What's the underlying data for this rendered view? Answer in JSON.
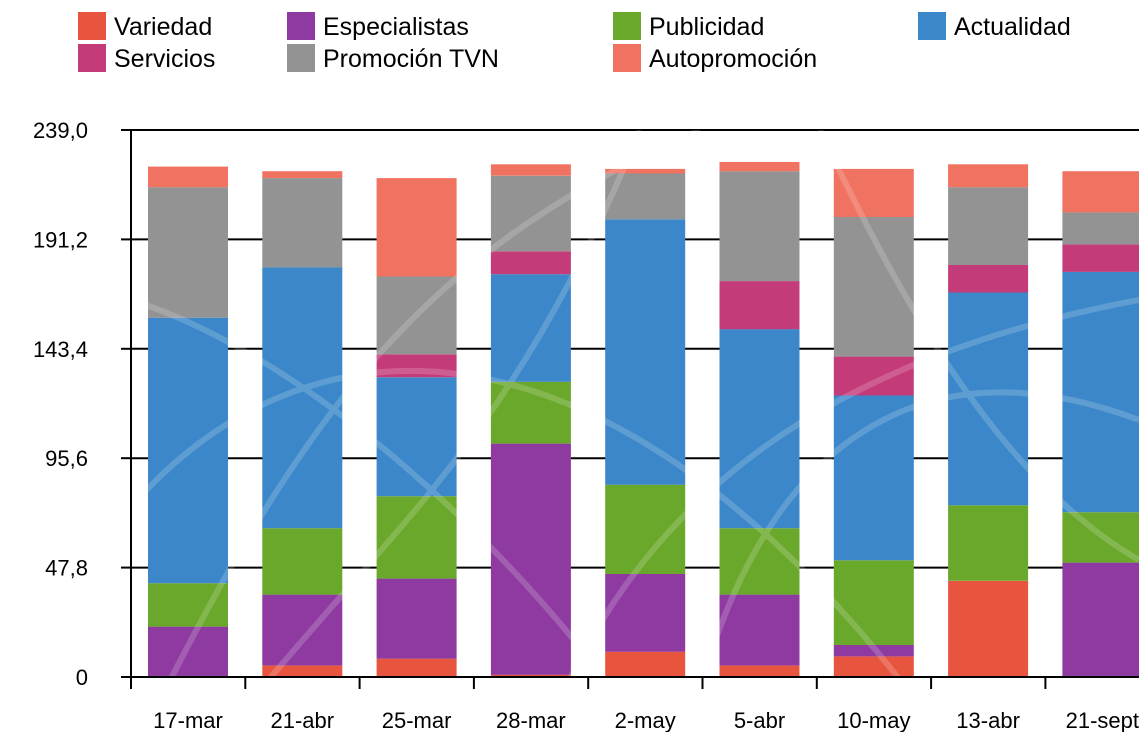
{
  "chart_data": {
    "type": "bar",
    "stacked": true,
    "title": "",
    "xlabel": "",
    "ylabel": "",
    "ylim": [
      0,
      239.0
    ],
    "y_ticks": [
      "0",
      "47,8",
      "95,6",
      "143,4",
      "191,2",
      "239,0"
    ],
    "y_tick_values": [
      0,
      47.8,
      95.6,
      143.4,
      191.2,
      239.0
    ],
    "grid": true,
    "legend_position": "top",
    "categories": [
      "17-mar",
      "21-abr",
      "25-mar",
      "28-mar",
      "2-may",
      "5-abr",
      "10-may",
      "13-abr",
      "21-sept"
    ],
    "series": [
      {
        "name": "Variedad",
        "color": "#e8553f",
        "values": [
          0,
          5,
          8,
          1,
          11,
          5,
          9,
          42,
          0
        ]
      },
      {
        "name": "Especialistas",
        "color": "#8e3aa0",
        "values": [
          22,
          31,
          35,
          101,
          34,
          31,
          5,
          0,
          50
        ]
      },
      {
        "name": "Publicidad",
        "color": "#6aa82b",
        "values": [
          19,
          29,
          36,
          27,
          39,
          29,
          37,
          33,
          22
        ]
      },
      {
        "name": "Actualidad",
        "color": "#3b87c9",
        "values": [
          116,
          114,
          52,
          47,
          116,
          87,
          72,
          93,
          105
        ]
      },
      {
        "name": "Servicios",
        "color": "#c33b79",
        "values": [
          0,
          0,
          10,
          10,
          0,
          21,
          17,
          12,
          12
        ]
      },
      {
        "name": "Promoción TVN",
        "color": "#939393",
        "values": [
          57,
          39,
          34,
          33,
          20,
          48,
          61,
          34,
          14
        ]
      },
      {
        "name": "Autopromoción",
        "color": "#f07260",
        "values": [
          9,
          3,
          43,
          5,
          2,
          4,
          21,
          10,
          18
        ]
      }
    ],
    "legend_order": [
      "Variedad",
      "Especialistas",
      "Publicidad",
      "Actualidad",
      "Servicios",
      "Promoción TVN",
      "Autopromoción"
    ]
  }
}
